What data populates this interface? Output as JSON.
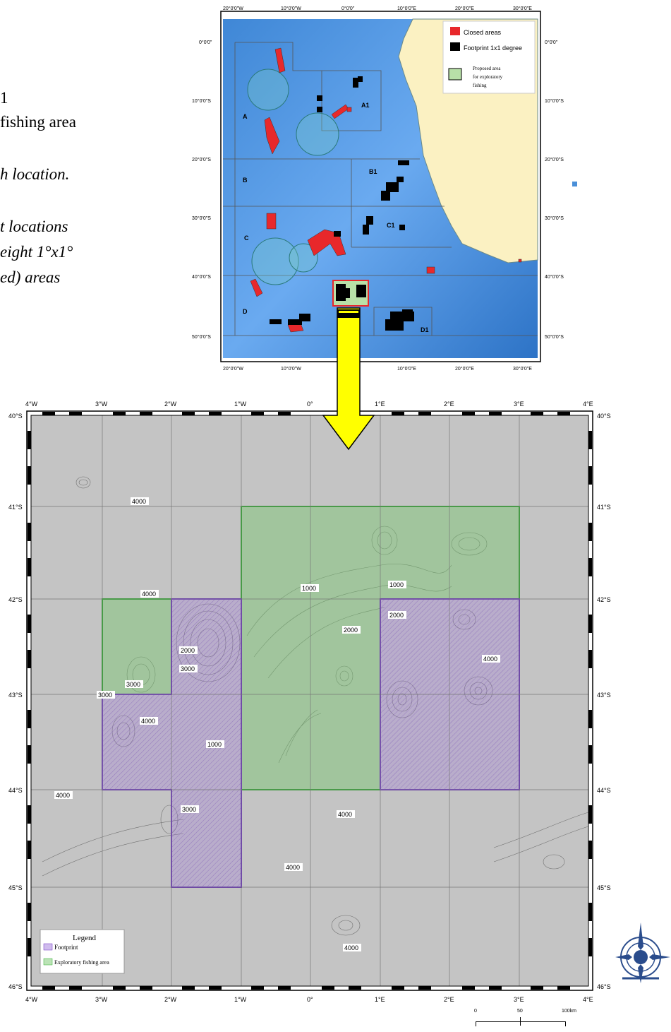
{
  "caption": {
    "line1": "1",
    "line2": "fishing area",
    "line3": "h location.",
    "line4": "t locations",
    "line5": "eight 1°x1°",
    "line6": "ed) areas"
  },
  "overview_map": {
    "lon_labels": [
      "20°0'0\"W",
      "10°0'0\"W",
      "0°0'0\"",
      "10°0'0\"E",
      "20°0'0\"E",
      "30°0'0\"E"
    ],
    "lat_labels_left": [
      "0°0'0\"",
      "10°0'0\"S",
      "20°0'0\"S",
      "30°0'0\"S",
      "40°0'0\"S",
      "50°0'0\"S"
    ],
    "lat_labels_right": [
      "0°0'0\"",
      "10°0'0\"S",
      "20°0'0\"S",
      "30°0'0\"S",
      "40°0'0\"S",
      "50°0'0\"S"
    ],
    "legend": {
      "closed": "Closed areas",
      "footprint": "Footprint 1x1 degree",
      "proposed_line1": "Proposed area",
      "proposed_line2": "for exploratory",
      "proposed_line3": "fishing"
    },
    "region_labels": [
      "A",
      "A1",
      "B",
      "B1",
      "C",
      "C1",
      "D",
      "D1"
    ],
    "colors": {
      "closed": "#e8282b",
      "footprint": "#000000",
      "land": "#fbf1c2",
      "ocean": "#4a8fd8"
    }
  },
  "detail_map": {
    "lon_labels": [
      "4°W",
      "3°W",
      "2°W",
      "1°W",
      "0°",
      "1°E",
      "2°E",
      "3°E",
      "4°E"
    ],
    "lat_labels": [
      "40°S",
      "41°S",
      "42°S",
      "43°S",
      "44°S",
      "45°S",
      "46°S"
    ],
    "contour_labels": [
      "4000",
      "4000",
      "1000",
      "1000",
      "2000",
      "2000",
      "3000",
      "2000",
      "3000",
      "4000",
      "4000",
      "3000",
      "4000",
      "1000",
      "4000",
      "3000",
      "4000",
      "4000",
      "4000",
      "4000"
    ],
    "legend": {
      "title": "Legend",
      "footprint": "Footprint",
      "exploratory": "Exploratory fishing area"
    },
    "colors": {
      "footprint": "#8a5cc8",
      "exploratory": "#3fb83f",
      "background": "#c4c4c4"
    }
  },
  "scale_bar": {
    "labels": [
      "0",
      "50",
      "100km"
    ]
  }
}
